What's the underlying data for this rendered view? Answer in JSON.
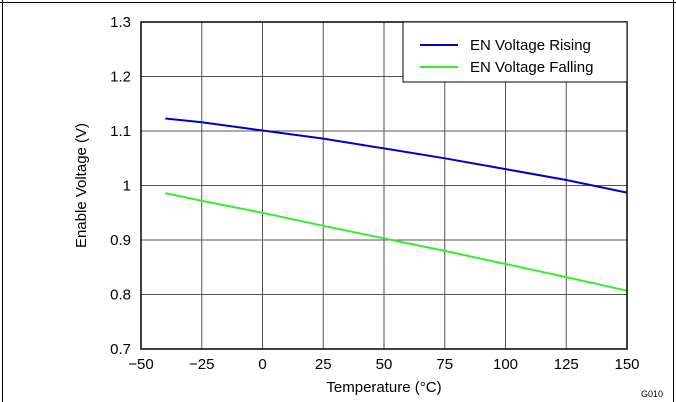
{
  "chart_data": {
    "type": "line",
    "xlabel": "Temperature (°C)",
    "ylabel": "Enable Voltage (V)",
    "xlim": [
      -50,
      150
    ],
    "ylim": [
      0.7,
      1.3
    ],
    "xticks": [
      -50,
      -25,
      0,
      25,
      50,
      75,
      100,
      125,
      150
    ],
    "yticks": [
      0.7,
      0.8,
      0.9,
      1.0,
      1.1,
      1.2,
      1.3
    ],
    "xtick_labels": [
      "−50",
      "−25",
      "0",
      "25",
      "50",
      "75",
      "100",
      "125",
      "150"
    ],
    "ytick_labels": [
      "0.7",
      "0.8",
      "0.9",
      "1",
      "1.1",
      "1.2",
      "1.3"
    ],
    "grid": true,
    "legend_position": "top-right",
    "series": [
      {
        "name": "EN Voltage Rising",
        "color": "#0000cc",
        "x": [
          -40,
          -25,
          0,
          25,
          50,
          75,
          100,
          125,
          150
        ],
        "y": [
          1.123,
          1.116,
          1.101,
          1.086,
          1.068,
          1.05,
          1.03,
          1.01,
          0.987
        ]
      },
      {
        "name": "EN Voltage Falling",
        "color": "#33ee33",
        "x": [
          -40,
          -25,
          0,
          25,
          50,
          75,
          100,
          125,
          150
        ],
        "y": [
          0.986,
          0.972,
          0.95,
          0.926,
          0.903,
          0.88,
          0.856,
          0.832,
          0.807
        ]
      }
    ],
    "tag": "G010"
  }
}
